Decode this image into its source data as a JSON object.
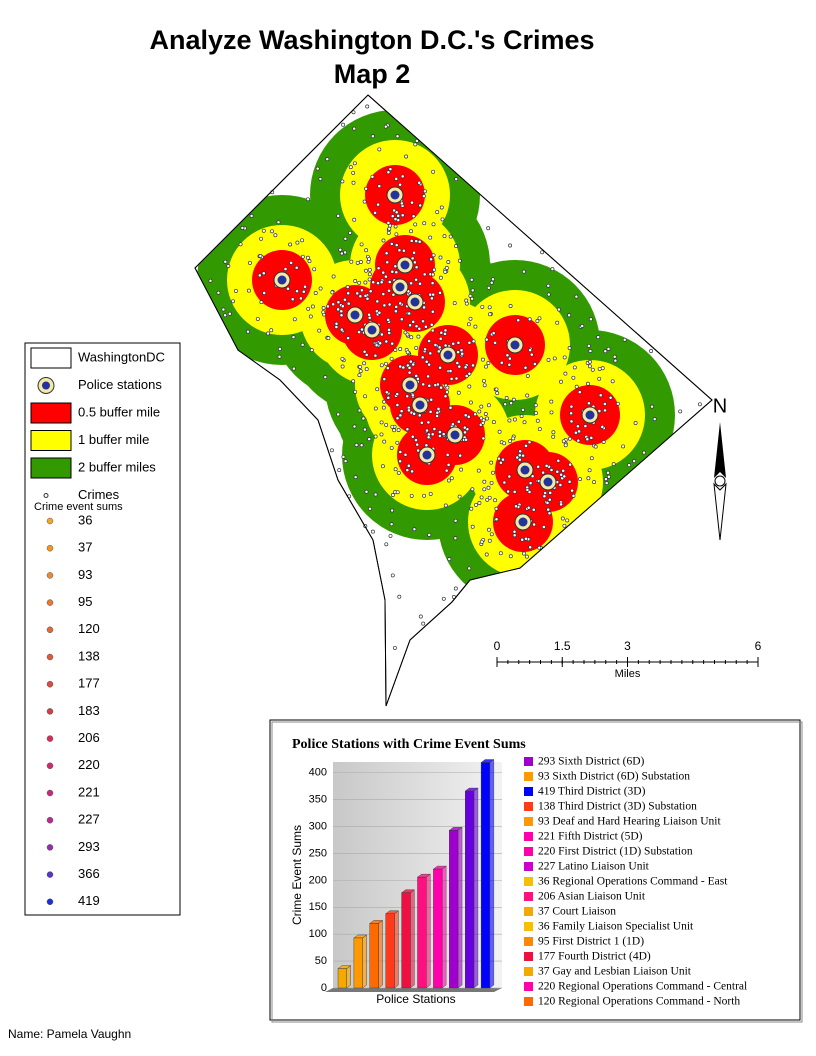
{
  "title_lines": [
    "Analyze Washington D.C.'s Crimes",
    "Map 2"
  ],
  "legend": {
    "layers": [
      {
        "label": "WashingtonDC",
        "color": "#ffffff"
      },
      {
        "label": "Police stations",
        "color": "#f4e9a6"
      },
      {
        "label": "0.5 buffer mile",
        "color": "#ff0000"
      },
      {
        "label": "1 buffer mile",
        "color": "#ffff00"
      },
      {
        "label": "2 buffer miles",
        "color": "#339900"
      },
      {
        "label": "Crimes",
        "color": "#ffffff"
      }
    ],
    "crime_sums_title": "Crime event sums",
    "crime_sums": [
      36,
      37,
      93,
      95,
      120,
      138,
      177,
      183,
      206,
      220,
      221,
      227,
      293,
      366,
      419
    ],
    "crime_sum_colors": [
      "#f5a623",
      "#f0981f",
      "#ec8a2b",
      "#e8792e",
      "#e46a33",
      "#e05a3a",
      "#dc4a42",
      "#d83a4c",
      "#d42e5a",
      "#cf2a6b",
      "#c8287e",
      "#b82a95",
      "#8f2fb0",
      "#5b34c4",
      "#1a2fd6"
    ]
  },
  "scale_bar": {
    "ticks": [
      0,
      1.5,
      3,
      6
    ],
    "unit": "Miles",
    "xlim": [
      0,
      6
    ]
  },
  "north_label": "N",
  "chart": {
    "title": "Police Stations with Crime Event Sums",
    "xlabel": "Police Stations",
    "ylabel": "Crime Event Sums",
    "ylim": [
      0,
      420
    ],
    "yticks": [
      0,
      50,
      100,
      150,
      200,
      250,
      300,
      350,
      400
    ],
    "bars": [
      {
        "value": 36,
        "color": "#f5a800"
      },
      {
        "value": 93,
        "color": "#ff9900"
      },
      {
        "value": 120,
        "color": "#ff6a00"
      },
      {
        "value": 138,
        "color": "#ff3a1a"
      },
      {
        "value": 177,
        "color": "#ee1040"
      },
      {
        "value": 206,
        "color": "#ff1080"
      },
      {
        "value": 221,
        "color": "#ff00aa"
      },
      {
        "value": 293,
        "color": "#a000cc"
      },
      {
        "value": 366,
        "color": "#6600dd"
      },
      {
        "value": 419,
        "color": "#0000ff"
      }
    ],
    "legend": [
      {
        "label": "293 Sixth District (6D)",
        "color": "#a000cc"
      },
      {
        "label": "93 Sixth District (6D) Substation",
        "color": "#ff9900"
      },
      {
        "label": "419 Third District (3D)",
        "color": "#0000ff"
      },
      {
        "label": "138 Third District (3D) Substation",
        "color": "#ff3a1a"
      },
      {
        "label": "93 Deaf and Hard Hearing Liaison Unit",
        "color": "#ff9900"
      },
      {
        "label": "221 Fifth District (5D)",
        "color": "#ff00aa"
      },
      {
        "label": "220 First District (1D) Substation",
        "color": "#ff00aa"
      },
      {
        "label": "227 Latino Liaison Unit",
        "color": "#cc00cc"
      },
      {
        "label": "36 Regional Operations Command - East",
        "color": "#f5c000"
      },
      {
        "label": "206 Asian Liaison Unit",
        "color": "#ff1080"
      },
      {
        "label": "37 Court Liaison",
        "color": "#f5a800"
      },
      {
        "label": "36 Family Liaison Specialist Unit",
        "color": "#f5c000"
      },
      {
        "label": "95 First District 1 (1D)",
        "color": "#ff8800"
      },
      {
        "label": "177 Fourth District (4D)",
        "color": "#ee1040"
      },
      {
        "label": "37 Gay and Lesbian Liaison Unit",
        "color": "#f5a800"
      },
      {
        "label": "220 Regional Operations Command - Central",
        "color": "#ff00aa"
      },
      {
        "label": "120 Regional Operations Command - North",
        "color": "#ff6a00"
      }
    ]
  },
  "author": "Name: Pamela Vaughn"
}
